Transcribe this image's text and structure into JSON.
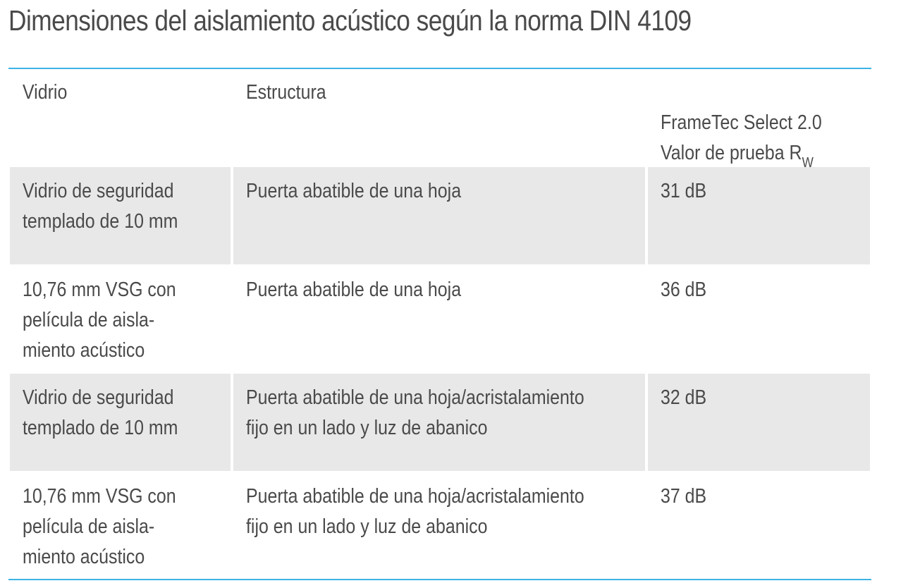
{
  "title": "Dimensiones del aislamiento acústico según la norma DIN 4109",
  "accent_color": "#3cb4e6",
  "row_shade_color": "#e8e8e8",
  "table": {
    "headers": {
      "glass": "Vidrio",
      "structure": "Estructura",
      "value_line1": "FrameTec Select 2.0",
      "value_line2": "Valor de prueba R",
      "value_subscript": "W"
    },
    "rows": [
      {
        "glass": "Vidrio de seguridad\ntemplado de 10 mm",
        "structure": "Puerta abatible de una hoja",
        "value": "31 dB"
      },
      {
        "glass": "10,76 mm VSG con\npelícula de aisla-\nmiento acústico",
        "structure": "Puerta abatible de una hoja",
        "value": "36 dB"
      },
      {
        "glass": "Vidrio de seguridad\ntemplado de 10 mm",
        "structure": "Puerta abatible de una hoja/acristalamiento\nfijo en un lado y luz de abanico",
        "value": "32 dB"
      },
      {
        "glass": "10,76 mm VSG con\npelícula de aisla-\nmiento acústico",
        "structure": "Puerta abatible de una hoja/acristalamiento\nfijo en un lado y luz de abanico",
        "value": "37 dB"
      }
    ]
  }
}
